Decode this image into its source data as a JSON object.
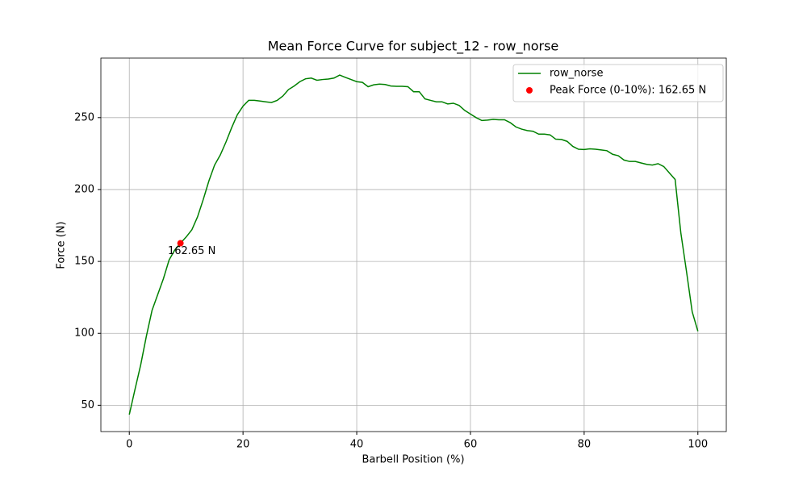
{
  "chart_data": {
    "type": "line",
    "title": "Mean Force Curve for subject_12 - row_norse",
    "xlabel": "Barbell Position (%)",
    "ylabel": "Force (N)",
    "xlim": [
      -5,
      105
    ],
    "ylim": [
      31.7,
      291.4
    ],
    "xticks": [
      0,
      20,
      40,
      60,
      80,
      100
    ],
    "yticks": [
      50,
      100,
      150,
      200,
      250
    ],
    "grid": true,
    "legend": "upper right",
    "series": [
      {
        "name": "row_norse",
        "type": "line",
        "color": "green",
        "x": [
          0,
          1,
          2,
          3,
          4,
          5,
          6,
          7,
          8,
          9,
          10,
          11,
          12,
          13,
          14,
          15,
          16,
          17,
          18,
          19,
          20,
          21,
          22,
          23,
          24,
          25,
          26,
          27,
          28,
          29,
          30,
          31,
          32,
          33,
          34,
          35,
          36,
          37,
          38,
          39,
          40,
          41,
          42,
          43,
          44,
          45,
          46,
          47,
          48,
          49,
          50,
          51,
          52,
          53,
          54,
          55,
          56,
          57,
          58,
          59,
          60,
          61,
          62,
          63,
          64,
          65,
          66,
          67,
          68,
          69,
          70,
          71,
          72,
          73,
          74,
          75,
          76,
          77,
          78,
          79,
          80,
          81,
          82,
          83,
          84,
          85,
          86,
          87,
          88,
          89,
          90,
          91,
          92,
          93,
          94,
          95,
          96,
          97,
          98,
          99,
          100
        ],
        "values": [
          43.5,
          61,
          78,
          98,
          116,
          127,
          138,
          151,
          158,
          162.65,
          167,
          172,
          181,
          193,
          206,
          217,
          224,
          233,
          243,
          252,
          258,
          262,
          262,
          261.5,
          261,
          260.5,
          262,
          265,
          269.5,
          272,
          275,
          277,
          277.5,
          276,
          276.5,
          276.8,
          277.5,
          279.6,
          278,
          276.5,
          275,
          274.5,
          271.5,
          272.8,
          273.3,
          273,
          272,
          271.8,
          271.8,
          271.5,
          268,
          268,
          263,
          262,
          261,
          261,
          259.5,
          260,
          258.5,
          255,
          252.5,
          250,
          248,
          248.3,
          248.8,
          248.5,
          248.5,
          246.5,
          243.5,
          242,
          241,
          240.5,
          238.5,
          238.5,
          238,
          235,
          234.8,
          233.5,
          230,
          228,
          227.8,
          228.3,
          228,
          227.5,
          227,
          224.5,
          223.5,
          220.5,
          219.5,
          219.5,
          218.5,
          217.5,
          217,
          218,
          216,
          211.5,
          207,
          170,
          143,
          115,
          101.5
        ]
      },
      {
        "name": "Peak Force (0-10%): 162.65 N",
        "type": "scatter",
        "color": "red",
        "x": [
          9
        ],
        "values": [
          162.65
        ],
        "value_labels": [
          "162.65 N"
        ]
      }
    ]
  }
}
